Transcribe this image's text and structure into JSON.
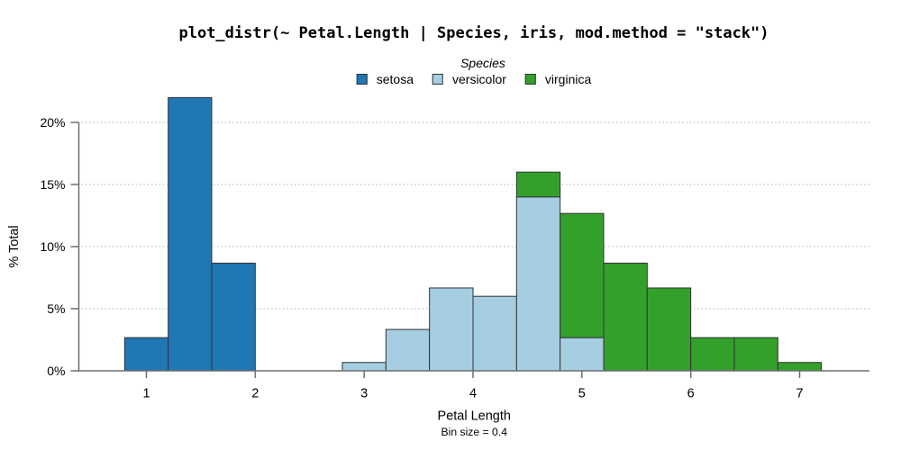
{
  "colors": {
    "axis": "#6e6e6e",
    "grid": "#cbcbcb",
    "bar_border": "#333333",
    "text": "#000000",
    "background": "#ffffff"
  },
  "chart_data": {
    "type": "bar",
    "subtype": "stacked-histogram",
    "title": "plot_distr(~ Petal.Length | Species, iris, mod.method = \"stack\")",
    "xlabel": "Petal Length",
    "ylabel": "% Total",
    "footnote": "Bin size = 0.4",
    "bin_size": 0.4,
    "legend": {
      "title": "Species",
      "position": "top"
    },
    "grid": "horizontal dotted lines at y ticks",
    "x_ticks": [
      1,
      2,
      3,
      4,
      5,
      6,
      7
    ],
    "y_ticks": [
      {
        "pct": 0,
        "label": "0%"
      },
      {
        "pct": 5,
        "label": "5%"
      },
      {
        "pct": 10,
        "label": "10%"
      },
      {
        "pct": 15,
        "label": "15%"
      },
      {
        "pct": 20,
        "label": "20%"
      }
    ],
    "xlim": [
      0.4,
      7.65
    ],
    "ylim": [
      0,
      22.9
    ],
    "series": [
      {
        "name": "setosa",
        "color": "#1f77b4"
      },
      {
        "name": "versicolor",
        "color": "#a6cee3"
      },
      {
        "name": "virginica",
        "color": "#33a02c"
      }
    ],
    "bins": [
      {
        "x0": 0.8,
        "x1": 1.2,
        "segments": [
          {
            "series": "setosa",
            "pct": 2.67
          }
        ]
      },
      {
        "x0": 1.2,
        "x1": 1.6,
        "segments": [
          {
            "series": "setosa",
            "pct": 22
          }
        ]
      },
      {
        "x0": 1.6,
        "x1": 2.0,
        "segments": [
          {
            "series": "setosa",
            "pct": 8.67
          }
        ]
      },
      {
        "x0": 2.8,
        "x1": 3.2,
        "segments": [
          {
            "series": "versicolor",
            "pct": 0.67
          }
        ]
      },
      {
        "x0": 3.2,
        "x1": 3.6,
        "segments": [
          {
            "series": "versicolor",
            "pct": 3.33
          }
        ]
      },
      {
        "x0": 3.6,
        "x1": 4.0,
        "segments": [
          {
            "series": "versicolor",
            "pct": 6.67
          }
        ]
      },
      {
        "x0": 4.0,
        "x1": 4.4,
        "segments": [
          {
            "series": "versicolor",
            "pct": 6.0
          }
        ]
      },
      {
        "x0": 4.4,
        "x1": 4.8,
        "segments": [
          {
            "series": "versicolor",
            "pct": 14.0
          },
          {
            "series": "virginica",
            "pct": 2.0
          }
        ]
      },
      {
        "x0": 4.8,
        "x1": 5.2,
        "segments": [
          {
            "series": "versicolor",
            "pct": 2.67
          },
          {
            "series": "virginica",
            "pct": 10.0
          }
        ]
      },
      {
        "x0": 5.2,
        "x1": 5.6,
        "segments": [
          {
            "series": "virginica",
            "pct": 8.67
          }
        ]
      },
      {
        "x0": 5.6,
        "x1": 6.0,
        "segments": [
          {
            "series": "virginica",
            "pct": 6.67
          }
        ]
      },
      {
        "x0": 6.0,
        "x1": 6.4,
        "segments": [
          {
            "series": "virginica",
            "pct": 2.67
          }
        ]
      },
      {
        "x0": 6.4,
        "x1": 6.8,
        "segments": [
          {
            "series": "virginica",
            "pct": 2.67
          }
        ]
      },
      {
        "x0": 6.8,
        "x1": 7.2,
        "segments": [
          {
            "series": "virginica",
            "pct": 0.67
          }
        ]
      }
    ]
  }
}
